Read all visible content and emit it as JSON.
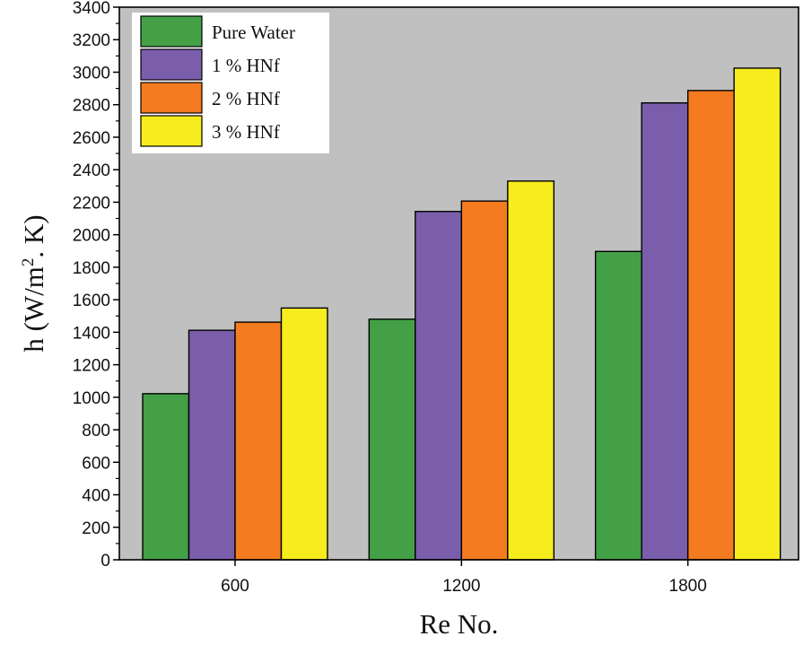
{
  "chart_data": {
    "type": "bar",
    "title": "",
    "xlabel": "Re No.",
    "ylabel_main": "h (W/m",
    "ylabel_sup": "2",
    "ylabel_tail": ". K)",
    "categories": [
      "600",
      "1200",
      "1800"
    ],
    "ylim": [
      0,
      3400
    ],
    "yticks": [
      0,
      200,
      400,
      600,
      800,
      1000,
      1200,
      1400,
      1600,
      1800,
      2000,
      2200,
      2400,
      2600,
      2800,
      3000,
      3200,
      3400
    ],
    "grid": false,
    "legend_position": "top-left",
    "series": [
      {
        "name": "Pure Water",
        "color": "#43a047",
        "values": [
          1022,
          1480,
          1897
        ]
      },
      {
        "name": "1 % HNf",
        "color": "#7b5eab",
        "values": [
          1412,
          2143,
          2811
        ]
      },
      {
        "name": "2 % HNf",
        "color": "#f47b20",
        "values": [
          1462,
          2207,
          2887
        ]
      },
      {
        "name": "3 % HNf",
        "color": "#f7ec1e",
        "values": [
          1549,
          2330,
          3025
        ]
      }
    ],
    "plot_background": "#c0c0c0"
  }
}
